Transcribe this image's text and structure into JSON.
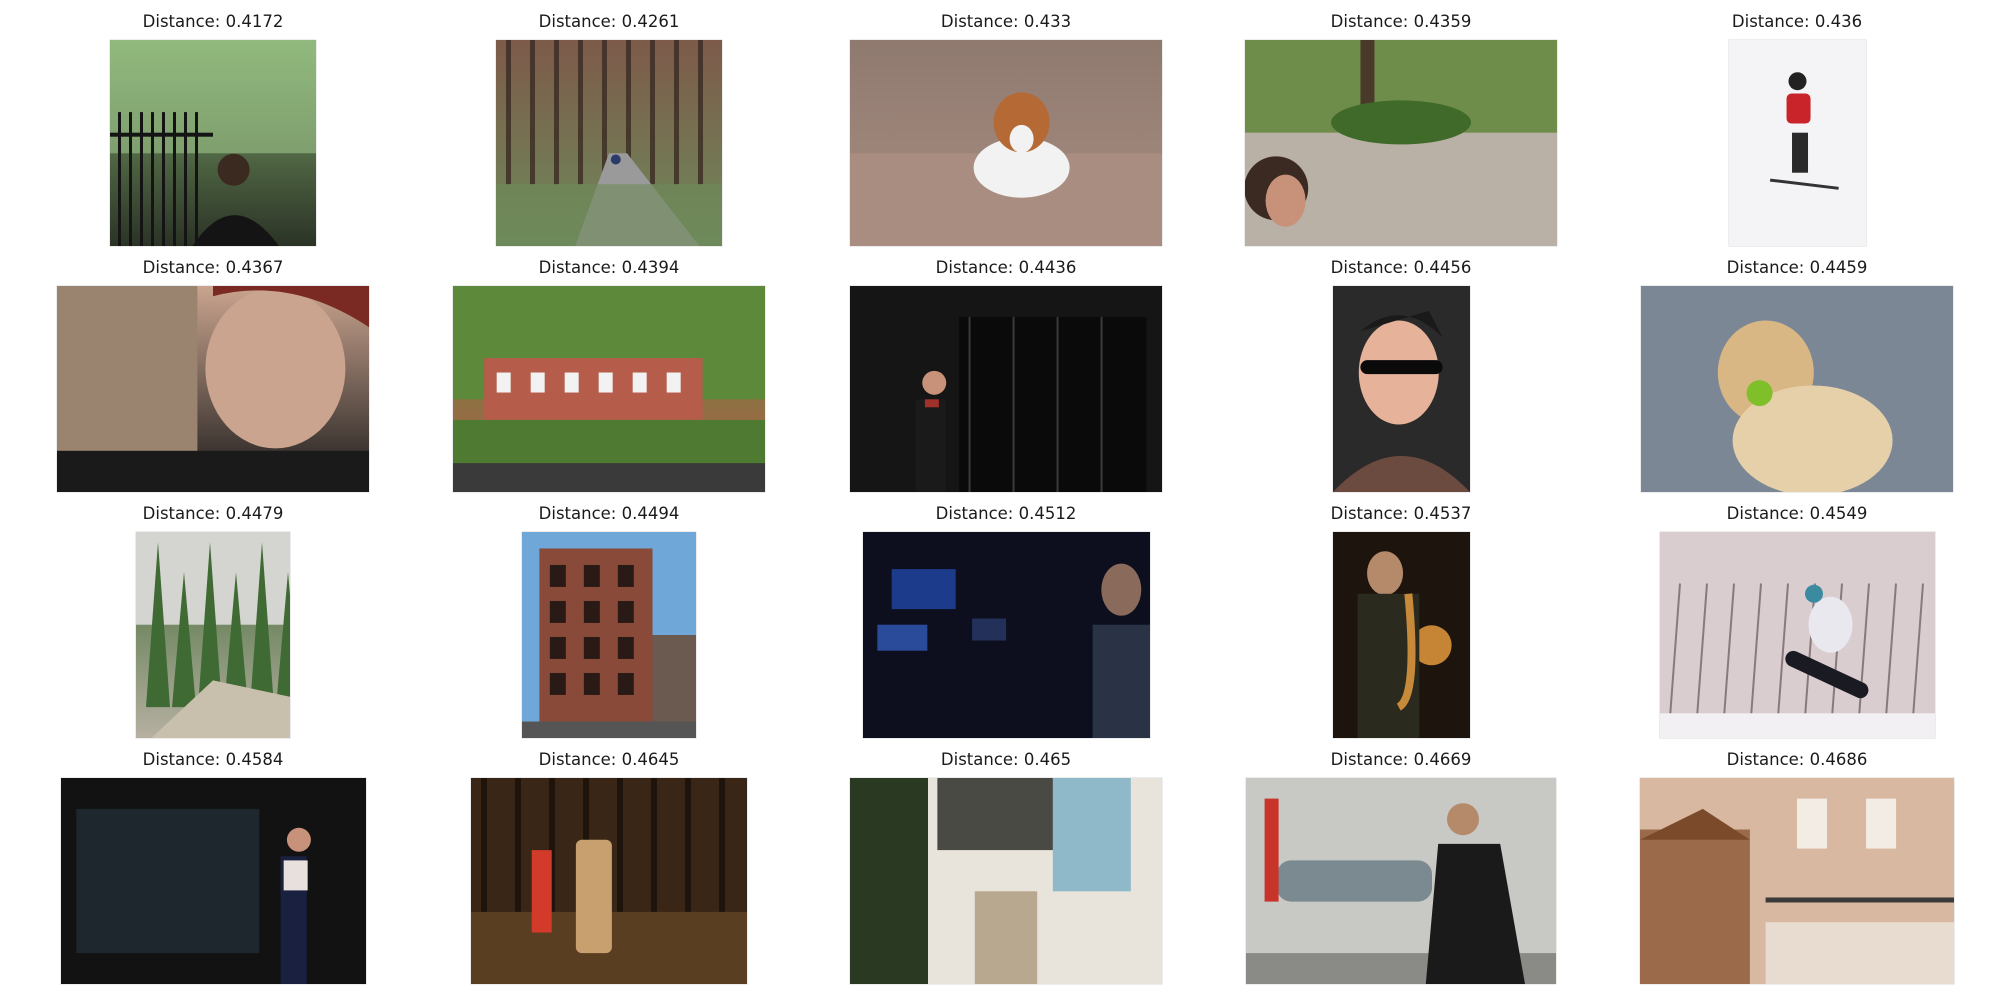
{
  "results": [
    {
      "distance_label": "Distance: 0.4172",
      "subject": "man-by-iron-fence",
      "palette": [
        "#7fa86a",
        "#2b3326",
        "#141414"
      ]
    },
    {
      "distance_label": "Distance: 0.4261",
      "subject": "path-through-woods",
      "palette": [
        "#7d5a4a",
        "#6e8a5a",
        "#9a9a9a"
      ]
    },
    {
      "distance_label": "Distance: 0.433",
      "subject": "running-dog",
      "palette": [
        "#8f7a70",
        "#a98d80",
        "#f2f2f2"
      ]
    },
    {
      "distance_label": "Distance: 0.4359",
      "subject": "park-with-person",
      "palette": [
        "#6f8d4a",
        "#b9b0a6",
        "#3a2a22"
      ]
    },
    {
      "distance_label": "Distance: 0.436",
      "subject": "skier-in-snow",
      "palette": [
        "#f4f4f6",
        "#c8242a",
        "#2a2a2a"
      ]
    },
    {
      "distance_label": "Distance: 0.4367",
      "subject": "young-man-portrait",
      "palette": [
        "#caa48f",
        "#1a1a1a",
        "#7a2a22"
      ]
    },
    {
      "distance_label": "Distance: 0.4394",
      "subject": "city-park-crowd",
      "palette": [
        "#5c8a3a",
        "#b55c4a",
        "#3a3a3a"
      ]
    },
    {
      "distance_label": "Distance: 0.4436",
      "subject": "woman-in-doorway",
      "palette": [
        "#151515",
        "#3b3025",
        "#a0302a"
      ]
    },
    {
      "distance_label": "Distance: 0.4456",
      "subject": "boy-in-sunglasses",
      "palette": [
        "#2a2a2a",
        "#e6b39a",
        "#6b4a3f"
      ]
    },
    {
      "distance_label": "Distance: 0.4459",
      "subject": "dog-with-ball",
      "palette": [
        "#7c8796",
        "#d9b784",
        "#7fbf2a"
      ]
    },
    {
      "distance_label": "Distance: 0.4479",
      "subject": "forest-trail",
      "palette": [
        "#3f6a33",
        "#b6b0a2",
        "#c8c0ad"
      ]
    },
    {
      "distance_label": "Distance: 0.4494",
      "subject": "brick-building",
      "palette": [
        "#6ea7d8",
        "#8a4a3a",
        "#555555"
      ]
    },
    {
      "distance_label": "Distance: 0.4512",
      "subject": "campaign-window",
      "palette": [
        "#0d0f1f",
        "#1c3b8a",
        "#8a6a5a"
      ]
    },
    {
      "distance_label": "Distance: 0.4537",
      "subject": "saxophone-player",
      "palette": [
        "#1e140e",
        "#c78a3a",
        "#f0a040"
      ]
    },
    {
      "distance_label": "Distance: 0.4549",
      "subject": "snowboarder-jump",
      "palette": [
        "#d9cdd0",
        "#3a2a2a",
        "#3a8aa0"
      ]
    },
    {
      "distance_label": "Distance: 0.4584",
      "subject": "woman-on-street",
      "palette": [
        "#121212",
        "#2a3a4a",
        "#e8e0dc"
      ]
    },
    {
      "distance_label": "Distance: 0.4645",
      "subject": "people-in-autumn-park",
      "palette": [
        "#3a2616",
        "#c8a070",
        "#d23a2a"
      ]
    },
    {
      "distance_label": "Distance: 0.465",
      "subject": "old-town-street",
      "palette": [
        "#8fb8c8",
        "#e8e4dc",
        "#2a3a22"
      ]
    },
    {
      "distance_label": "Distance: 0.4669",
      "subject": "man-in-black-coat",
      "palette": [
        "#c8c8c4",
        "#1a1a1a",
        "#c8342a"
      ]
    },
    {
      "distance_label": "Distance: 0.4686",
      "subject": "apartment-balcony",
      "palette": [
        "#d8b8a0",
        "#7a4a2a",
        "#f2ece4"
      ]
    }
  ]
}
